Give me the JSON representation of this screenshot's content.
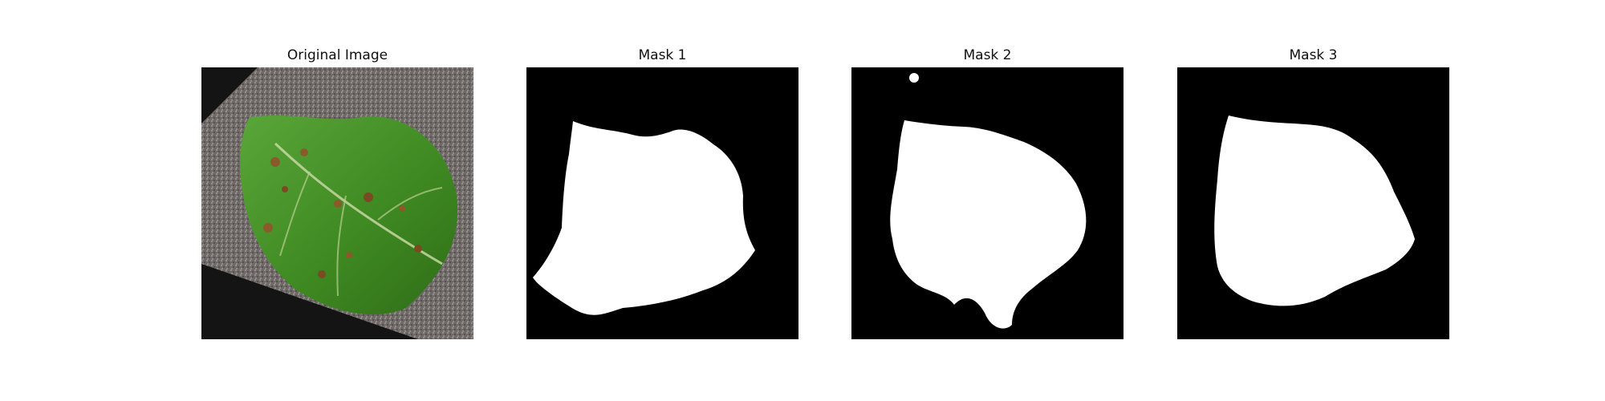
{
  "figure": {
    "panels": [
      {
        "title": "Original Image",
        "kind": "photo"
      },
      {
        "title": "Mask 1",
        "kind": "mask"
      },
      {
        "title": "Mask 2",
        "kind": "mask"
      },
      {
        "title": "Mask 3",
        "kind": "mask"
      }
    ]
  },
  "colors": {
    "mask_background": "#000000",
    "mask_foreground": "#ffffff",
    "leaf_green": "#4f9a2c",
    "leaf_dark": "#2f6d18",
    "paper_gray": "#7f7a78",
    "lesion_brown": "#8b5a2b"
  }
}
